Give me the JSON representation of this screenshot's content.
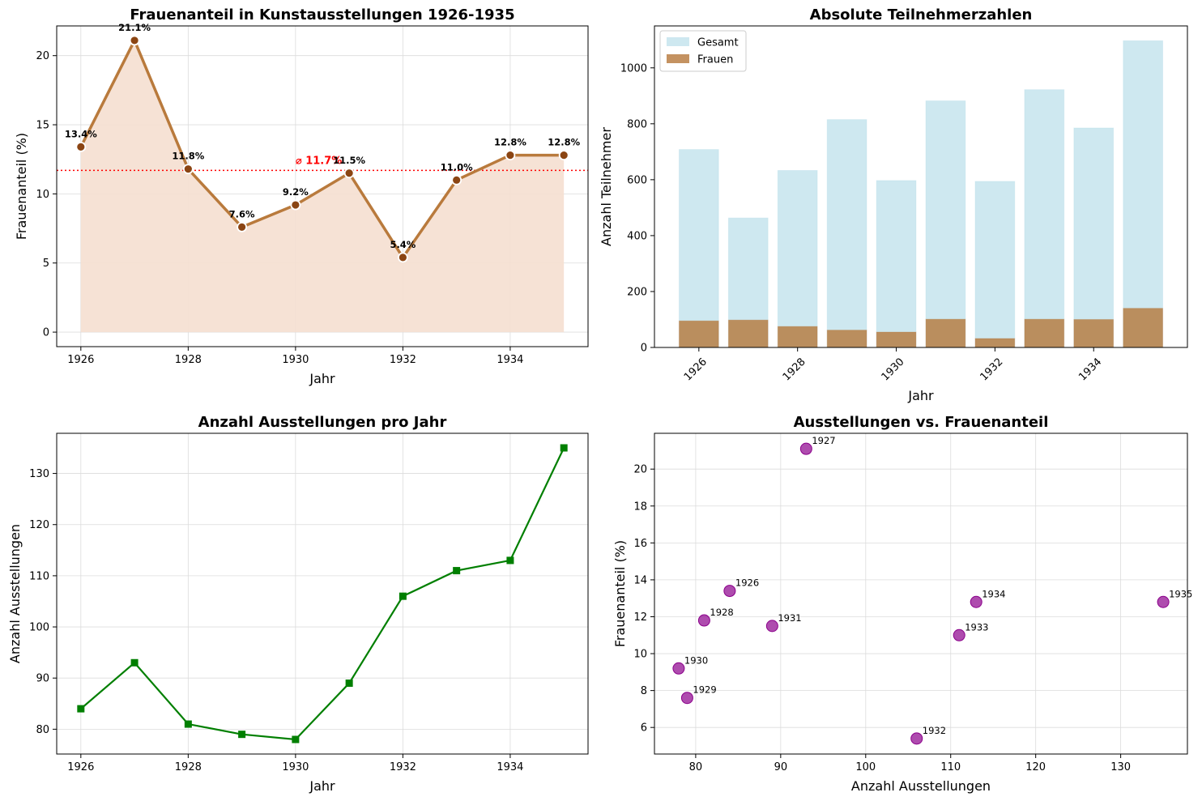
{
  "colors": {
    "line1": "#b97a3c",
    "fill1": "#f5dfd0",
    "marker1": "#8b4513",
    "mean": "#ff0000",
    "gesamt": "#add8e6",
    "frauen": "#b5773a",
    "line3": "#007f00",
    "scatter": "#8b008b"
  },
  "chart_data": [
    {
      "type": "area",
      "title": "Frauenanteil in Kunstausstellungen 1926-1935",
      "xlabel": "Jahr",
      "ylabel": "Frauenanteil (%)",
      "x": [
        1926,
        1927,
        1928,
        1929,
        1930,
        1931,
        1932,
        1933,
        1934,
        1935
      ],
      "values": [
        13.4,
        21.1,
        11.8,
        7.6,
        9.2,
        11.5,
        5.4,
        11.0,
        12.8,
        12.8
      ],
      "data_labels": [
        "13.4%",
        "21.1%",
        "11.8%",
        "7.6%",
        "9.2%",
        "11.5%",
        "5.4%",
        "11.0%",
        "12.8%",
        "12.8%"
      ],
      "mean": 11.7,
      "mean_label": "⌀ 11.7%",
      "xlim": [
        1925.55,
        1935.45
      ],
      "ylim": [
        -1.05,
        22.15
      ],
      "xticks": [
        1926,
        1928,
        1930,
        1932,
        1934
      ],
      "yticks": [
        0,
        5,
        10,
        15,
        20
      ],
      "grid": true
    },
    {
      "type": "bar",
      "title": "Absolute Teilnehmerzahlen",
      "xlabel": "Jahr",
      "ylabel": "Anzahl Teilnehmer",
      "categories": [
        1926,
        1927,
        1928,
        1929,
        1930,
        1931,
        1932,
        1933,
        1934,
        1935
      ],
      "series": [
        {
          "name": "Gesamt",
          "values": [
            708,
            463,
            633,
            815,
            597,
            882,
            594,
            922,
            785,
            1097
          ]
        },
        {
          "name": "Frauen",
          "values": [
            95,
            98,
            75,
            62,
            55,
            101,
            32,
            101,
            100,
            140
          ]
        }
      ],
      "xlim": [
        1925.1,
        1935.9
      ],
      "ylim": [
        0,
        1150
      ],
      "xticks": [
        1926,
        1928,
        1930,
        1932,
        1934
      ],
      "yticks": [
        0,
        200,
        400,
        600,
        800,
        1000
      ],
      "legend": "top-left",
      "grid": false
    },
    {
      "type": "line",
      "title": "Anzahl Ausstellungen pro Jahr",
      "xlabel": "Jahr",
      "ylabel": "Anzahl Ausstellungen",
      "x": [
        1926,
        1927,
        1928,
        1929,
        1930,
        1931,
        1932,
        1933,
        1934,
        1935
      ],
      "values": [
        84,
        93,
        81,
        79,
        78,
        89,
        106,
        111,
        113,
        135
      ],
      "xlim": [
        1925.55,
        1935.45
      ],
      "ylim": [
        75.15,
        137.85
      ],
      "xticks": [
        1926,
        1928,
        1930,
        1932,
        1934
      ],
      "yticks": [
        80,
        90,
        100,
        110,
        120,
        130
      ],
      "grid": true
    },
    {
      "type": "scatter",
      "title": "Ausstellungen vs. Frauenanteil",
      "xlabel": "Anzahl Ausstellungen",
      "ylabel": "Frauenanteil (%)",
      "points": [
        {
          "x": 84,
          "y": 13.4,
          "label": "1926"
        },
        {
          "x": 93,
          "y": 21.1,
          "label": "1927"
        },
        {
          "x": 81,
          "y": 11.8,
          "label": "1928"
        },
        {
          "x": 79,
          "y": 7.6,
          "label": "1929"
        },
        {
          "x": 78,
          "y": 9.2,
          "label": "1930"
        },
        {
          "x": 89,
          "y": 11.5,
          "label": "1931"
        },
        {
          "x": 106,
          "y": 5.4,
          "label": "1932"
        },
        {
          "x": 111,
          "y": 11.0,
          "label": "1933"
        },
        {
          "x": 113,
          "y": 12.8,
          "label": "1934"
        },
        {
          "x": 135,
          "y": 12.8,
          "label": "1935"
        }
      ],
      "xlim": [
        75.15,
        137.85
      ],
      "ylim": [
        4.56,
        21.94
      ],
      "xticks": [
        80,
        90,
        100,
        110,
        120,
        130
      ],
      "yticks": [
        6,
        8,
        10,
        12,
        14,
        16,
        18,
        20
      ],
      "grid": true
    }
  ]
}
